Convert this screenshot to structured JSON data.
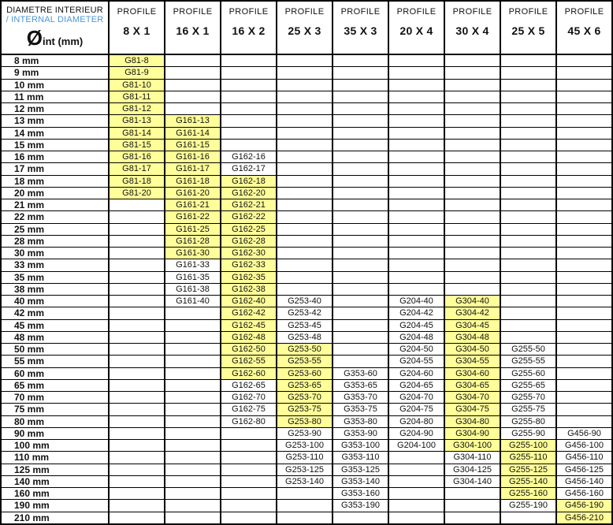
{
  "colors": {
    "highlight": "#FFFF99",
    "secondary_text_blue": "#4D96D6",
    "border": "#000000"
  },
  "table": {
    "corner": {
      "line1": "DIAMETRE INTERIEUR",
      "line2": "/ INTERNAL DIAMETER",
      "symbol": "Ø",
      "symbol_sub": "int (mm)"
    },
    "profile_label": "PROFILE",
    "profile_sizes": [
      "8 X 1",
      "16 X 1",
      "16 X 2",
      "25 X 3",
      "35 X 3",
      "20 X 4",
      "30 X 4",
      "25 X 5",
      "45 X 6"
    ],
    "rows": [
      {
        "d": "8 mm",
        "cells": [
          "G81-8",
          "",
          "",
          "",
          "",
          "",
          "",
          "",
          ""
        ],
        "hl": [
          0
        ]
      },
      {
        "d": "9 mm",
        "cells": [
          "G81-9",
          "",
          "",
          "",
          "",
          "",
          "",
          "",
          ""
        ],
        "hl": [
          0
        ]
      },
      {
        "d": "10 mm",
        "cells": [
          "G81-10",
          "",
          "",
          "",
          "",
          "",
          "",
          "",
          ""
        ],
        "hl": [
          0
        ]
      },
      {
        "d": "11 mm",
        "cells": [
          "G81-11",
          "",
          "",
          "",
          "",
          "",
          "",
          "",
          ""
        ],
        "hl": [
          0
        ]
      },
      {
        "d": "12 mm",
        "cells": [
          "G81-12",
          "",
          "",
          "",
          "",
          "",
          "",
          "",
          ""
        ],
        "hl": [
          0
        ]
      },
      {
        "d": "13 mm",
        "cells": [
          "G81-13",
          "G161-13",
          "",
          "",
          "",
          "",
          "",
          "",
          ""
        ],
        "hl": [
          0,
          1
        ]
      },
      {
        "d": "14 mm",
        "cells": [
          "G81-14",
          "G161-14",
          "",
          "",
          "",
          "",
          "",
          "",
          ""
        ],
        "hl": [
          0,
          1
        ]
      },
      {
        "d": "15 mm",
        "cells": [
          "G81-15",
          "G161-15",
          "",
          "",
          "",
          "",
          "",
          "",
          ""
        ],
        "hl": [
          0,
          1
        ]
      },
      {
        "d": "16 mm",
        "cells": [
          "G81-16",
          "G161-16",
          "G162-16",
          "",
          "",
          "",
          "",
          "",
          ""
        ],
        "hl": [
          0,
          1
        ]
      },
      {
        "d": "17 mm",
        "cells": [
          "G81-17",
          "G161-17",
          "G162-17",
          "",
          "",
          "",
          "",
          "",
          ""
        ],
        "hl": [
          0,
          1
        ]
      },
      {
        "d": "18 mm",
        "cells": [
          "G81-18",
          "G161-18",
          "G162-18",
          "",
          "",
          "",
          "",
          "",
          ""
        ],
        "hl": [
          0,
          1,
          2
        ]
      },
      {
        "d": "20 mm",
        "cells": [
          "G81-20",
          "G161-20",
          "G162-20",
          "",
          "",
          "",
          "",
          "",
          ""
        ],
        "hl": [
          0,
          1,
          2
        ]
      },
      {
        "d": "21 mm",
        "cells": [
          "",
          "G161-21",
          "G162-21",
          "",
          "",
          "",
          "",
          "",
          ""
        ],
        "hl": [
          1,
          2
        ]
      },
      {
        "d": "22 mm",
        "cells": [
          "",
          "G161-22",
          "G162-22",
          "",
          "",
          "",
          "",
          "",
          ""
        ],
        "hl": [
          1,
          2
        ]
      },
      {
        "d": "25 mm",
        "cells": [
          "",
          "G161-25",
          "G162-25",
          "",
          "",
          "",
          "",
          "",
          ""
        ],
        "hl": [
          1,
          2
        ]
      },
      {
        "d": "28 mm",
        "cells": [
          "",
          "G161-28",
          "G162-28",
          "",
          "",
          "",
          "",
          "",
          ""
        ],
        "hl": [
          1,
          2
        ]
      },
      {
        "d": "30 mm",
        "cells": [
          "",
          "G161-30",
          "G162-30",
          "",
          "",
          "",
          "",
          "",
          ""
        ],
        "hl": [
          1,
          2
        ]
      },
      {
        "d": "33 mm",
        "cells": [
          "",
          "G161-33",
          "G162-33",
          "",
          "",
          "",
          "",
          "",
          ""
        ],
        "hl": [
          2
        ]
      },
      {
        "d": "35 mm",
        "cells": [
          "",
          "G161-35",
          "G162-35",
          "",
          "",
          "",
          "",
          "",
          ""
        ],
        "hl": [
          2
        ]
      },
      {
        "d": "38 mm",
        "cells": [
          "",
          "G161-38",
          "G162-38",
          "",
          "",
          "",
          "",
          "",
          ""
        ],
        "hl": [
          2
        ]
      },
      {
        "d": "40 mm",
        "cells": [
          "",
          "G161-40",
          "G162-40",
          "G253-40",
          "",
          "G204-40",
          "G304-40",
          "",
          ""
        ],
        "hl": [
          2,
          6
        ]
      },
      {
        "d": "42 mm",
        "cells": [
          "",
          "",
          "G162-42",
          "G253-42",
          "",
          "G204-42",
          "G304-42",
          "",
          ""
        ],
        "hl": [
          2,
          6
        ]
      },
      {
        "d": "45 mm",
        "cells": [
          "",
          "",
          "G162-45",
          "G253-45",
          "",
          "G204-45",
          "G304-45",
          "",
          ""
        ],
        "hl": [
          2,
          6
        ]
      },
      {
        "d": "48 mm",
        "cells": [
          "",
          "",
          "G162-48",
          "G253-48",
          "",
          "G204-48",
          "G304-48",
          "",
          ""
        ],
        "hl": [
          2,
          6
        ]
      },
      {
        "d": "50 mm",
        "cells": [
          "",
          "",
          "G162-50",
          "G253-50",
          "",
          "G204-50",
          "G304-50",
          "G255-50",
          ""
        ],
        "hl": [
          2,
          3,
          6
        ]
      },
      {
        "d": "55 mm",
        "cells": [
          "",
          "",
          "G162-55",
          "G253-55",
          "",
          "G204-55",
          "G304-55",
          "G255-55",
          ""
        ],
        "hl": [
          2,
          3,
          6
        ]
      },
      {
        "d": "60 mm",
        "cells": [
          "",
          "",
          "G162-60",
          "G253-60",
          "G353-60",
          "G204-60",
          "G304-60",
          "G255-60",
          ""
        ],
        "hl": [
          2,
          3,
          6
        ]
      },
      {
        "d": "65 mm",
        "cells": [
          "",
          "",
          "G162-65",
          "G253-65",
          "G353-65",
          "G204-65",
          "G304-65",
          "G255-65",
          ""
        ],
        "hl": [
          3,
          6
        ]
      },
      {
        "d": "70 mm",
        "cells": [
          "",
          "",
          "G162-70",
          "G253-70",
          "G353-70",
          "G204-70",
          "G304-70",
          "G255-70",
          ""
        ],
        "hl": [
          3,
          6
        ]
      },
      {
        "d": "75 mm",
        "cells": [
          "",
          "",
          "G162-75",
          "G253-75",
          "G353-75",
          "G204-75",
          "G304-75",
          "G255-75",
          ""
        ],
        "hl": [
          3,
          6
        ]
      },
      {
        "d": "80 mm",
        "cells": [
          "",
          "",
          "G162-80",
          "G253-80",
          "G353-80",
          "G204-80",
          "G304-80",
          "G255-80",
          ""
        ],
        "hl": [
          3,
          6
        ]
      },
      {
        "d": "90 mm",
        "cells": [
          "",
          "",
          "",
          "G253-90",
          "G353-90",
          "G204-90",
          "G304-90",
          "G255-90",
          "G456-90"
        ],
        "hl": [
          6
        ]
      },
      {
        "d": "100 mm",
        "cells": [
          "",
          "",
          "",
          "G253-100",
          "G353-100",
          "G204-100",
          "G304-100",
          "G255-100",
          "G456-100"
        ],
        "hl": [
          6,
          7
        ]
      },
      {
        "d": "110 mm",
        "cells": [
          "",
          "",
          "",
          "G253-110",
          "G353-110",
          "",
          "G304-110",
          "G255-110",
          "G456-110"
        ],
        "hl": [
          7
        ]
      },
      {
        "d": "125 mm",
        "cells": [
          "",
          "",
          "",
          "G253-125",
          "G353-125",
          "",
          "G304-125",
          "G255-125",
          "G456-125"
        ],
        "hl": [
          7
        ]
      },
      {
        "d": "140 mm",
        "cells": [
          "",
          "",
          "",
          "G253-140",
          "G353-140",
          "",
          "G304-140",
          "G255-140",
          "G456-140"
        ],
        "hl": [
          7
        ]
      },
      {
        "d": "160 mm",
        "cells": [
          "",
          "",
          "",
          "",
          "G353-160",
          "",
          "",
          "G255-160",
          "G456-160"
        ],
        "hl": [
          7
        ]
      },
      {
        "d": "190 mm",
        "cells": [
          "",
          "",
          "",
          "",
          "G353-190",
          "",
          "",
          "G255-190",
          "G456-190"
        ],
        "hl": [
          8
        ]
      },
      {
        "d": "210 mm",
        "cells": [
          "",
          "",
          "",
          "",
          "",
          "",
          "",
          "",
          "G456-210"
        ],
        "hl": [
          8
        ]
      }
    ]
  }
}
